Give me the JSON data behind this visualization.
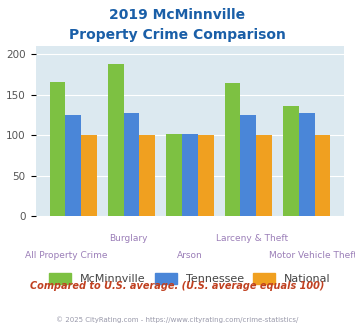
{
  "title_line1": "2019 McMinnville",
  "title_line2": "Property Crime Comparison",
  "categories": [
    "All Property Crime",
    "Burglary",
    "Arson",
    "Larceny & Theft",
    "Motor Vehicle Theft"
  ],
  "mcminnville": [
    166,
    188,
    101,
    165,
    136
  ],
  "tennessee": [
    125,
    127,
    101,
    125,
    128
  ],
  "national": [
    100,
    100,
    100,
    100,
    100
  ],
  "color_mcminnville": "#7dc142",
  "color_tennessee": "#4a86d8",
  "color_national": "#f0a020",
  "ylim": [
    0,
    210
  ],
  "yticks": [
    0,
    50,
    100,
    150,
    200
  ],
  "background_color": "#dce9f0",
  "footer_text": "Compared to U.S. average. (U.S. average equals 100)",
  "copyright_text": "© 2025 CityRating.com - https://www.cityrating.com/crime-statistics/",
  "title_color": "#1a5fa8",
  "xlabel_color": "#9b7eb8",
  "footer_color": "#c04020",
  "copyright_color": "#9999aa",
  "legend_labels": [
    "McMinnville",
    "Tennessee",
    "National"
  ],
  "legend_text_color": "#444444"
}
